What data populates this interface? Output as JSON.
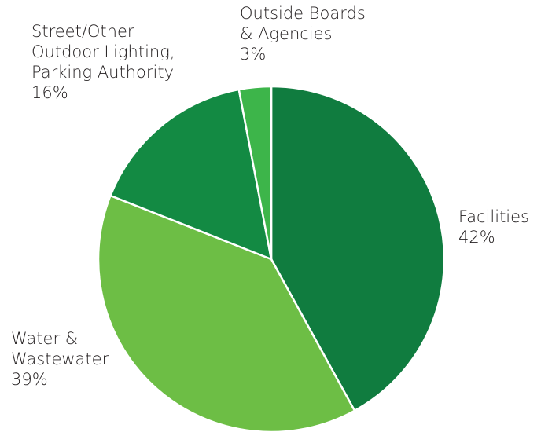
{
  "chart_data": {
    "type": "pie",
    "categories": [
      "Facilities",
      "Water &\nWastewater",
      "Street/Other\nOutdoor Lighting,\nParking Authority",
      "Outside Boards\n& Agencies"
    ],
    "values": [
      42,
      39,
      16,
      3
    ],
    "value_labels": [
      "42%",
      "39%",
      "16%",
      "3%"
    ],
    "colors": [
      "#107c3f",
      "#6dbe45",
      "#138a43",
      "#3db54a"
    ]
  }
}
